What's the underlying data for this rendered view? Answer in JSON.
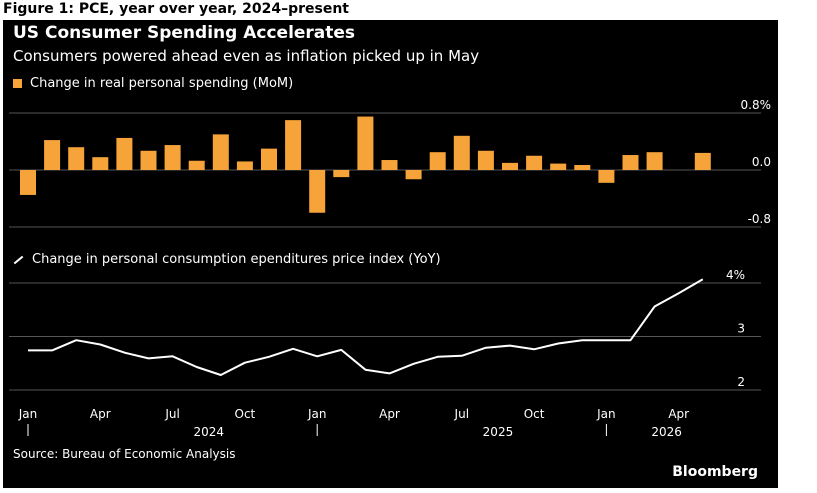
{
  "figure_caption": "Figure 1: PCE, year over year, 2024–present",
  "title": "US Consumer Spending Accelerates",
  "subtitle": "Consumers powered ahead even as inflation picked up in May",
  "source": "Source: Bureau of Economic Analysis",
  "brand": "Bloomberg",
  "colors": {
    "bar": "#f6a33a",
    "line": "#ffffff",
    "background": "#000000",
    "grid": "#555555"
  },
  "chart_data": [
    {
      "type": "bar",
      "legend": "Change in real personal spending (MoM)",
      "y_ticks": [
        {
          "value": 0.8,
          "label": "0.8%"
        },
        {
          "value": 0.0,
          "label": "0.0"
        },
        {
          "value": -0.8,
          "label": "-0.8"
        }
      ],
      "ylim": [
        -0.8,
        0.8
      ],
      "grid": true,
      "categories": [
        "2024-01",
        "2024-02",
        "2024-03",
        "2024-04",
        "2024-05",
        "2024-06",
        "2024-07",
        "2024-08",
        "2024-09",
        "2024-10",
        "2024-11",
        "2024-12",
        "2025-01",
        "2025-02",
        "2025-03",
        "2025-04",
        "2025-05",
        "2025-06",
        "2025-07",
        "2025-08",
        "2025-09",
        "2025-10",
        "2025-11",
        "2025-12",
        "2026-01",
        "2026-02",
        "2026-03",
        "2026-04",
        "2026-05"
      ],
      "values": [
        -0.35,
        0.42,
        0.32,
        0.18,
        0.45,
        0.27,
        0.35,
        0.13,
        0.5,
        0.12,
        0.3,
        0.7,
        -0.6,
        -0.1,
        0.75,
        0.14,
        -0.13,
        0.25,
        0.48,
        0.27,
        0.1,
        0.2,
        0.09,
        0.07,
        -0.18,
        0.21,
        0.25,
        null,
        0.24
      ]
    },
    {
      "type": "line",
      "legend": "Change in personal consumption ependitures price index (YoY)",
      "y_ticks": [
        {
          "value": 4,
          "label": "4%"
        },
        {
          "value": 3,
          "label": "3"
        },
        {
          "value": 2,
          "label": "2"
        }
      ],
      "ylim": [
        2,
        4
      ],
      "grid": true,
      "categories": [
        "2024-01",
        "2024-02",
        "2024-03",
        "2024-04",
        "2024-05",
        "2024-06",
        "2024-07",
        "2024-08",
        "2024-09",
        "2024-10",
        "2024-11",
        "2024-12",
        "2025-01",
        "2025-02",
        "2025-03",
        "2025-04",
        "2025-05",
        "2025-06",
        "2025-07",
        "2025-08",
        "2025-09",
        "2025-10",
        "2025-11",
        "2025-12",
        "2026-01",
        "2026-02",
        "2026-03",
        "2026-04",
        "2026-05"
      ],
      "values": [
        2.74,
        2.74,
        2.93,
        2.85,
        2.7,
        2.59,
        2.63,
        2.43,
        2.28,
        2.51,
        2.62,
        2.77,
        2.63,
        2.75,
        2.38,
        2.31,
        2.49,
        2.62,
        2.64,
        2.79,
        2.83,
        2.76,
        2.87,
        2.93,
        2.93,
        2.93,
        3.56,
        3.81,
        4.07
      ]
    }
  ],
  "x_axis": {
    "month_labels": [
      {
        "index": 0,
        "label": "Jan"
      },
      {
        "index": 3,
        "label": "Apr"
      },
      {
        "index": 6,
        "label": "Jul"
      },
      {
        "index": 9,
        "label": "Oct"
      },
      {
        "index": 12,
        "label": "Jan"
      },
      {
        "index": 15,
        "label": "Apr"
      },
      {
        "index": 18,
        "label": "Jul"
      },
      {
        "index": 21,
        "label": "Oct"
      },
      {
        "index": 24,
        "label": "Jan"
      },
      {
        "index": 27,
        "label": "Apr"
      }
    ],
    "year_labels": [
      {
        "index": 7.5,
        "label": "2024"
      },
      {
        "index": 19.5,
        "label": "2025"
      },
      {
        "index": 26.5,
        "label": "2026"
      }
    ],
    "year_dividers": [
      0,
      12,
      24
    ]
  }
}
